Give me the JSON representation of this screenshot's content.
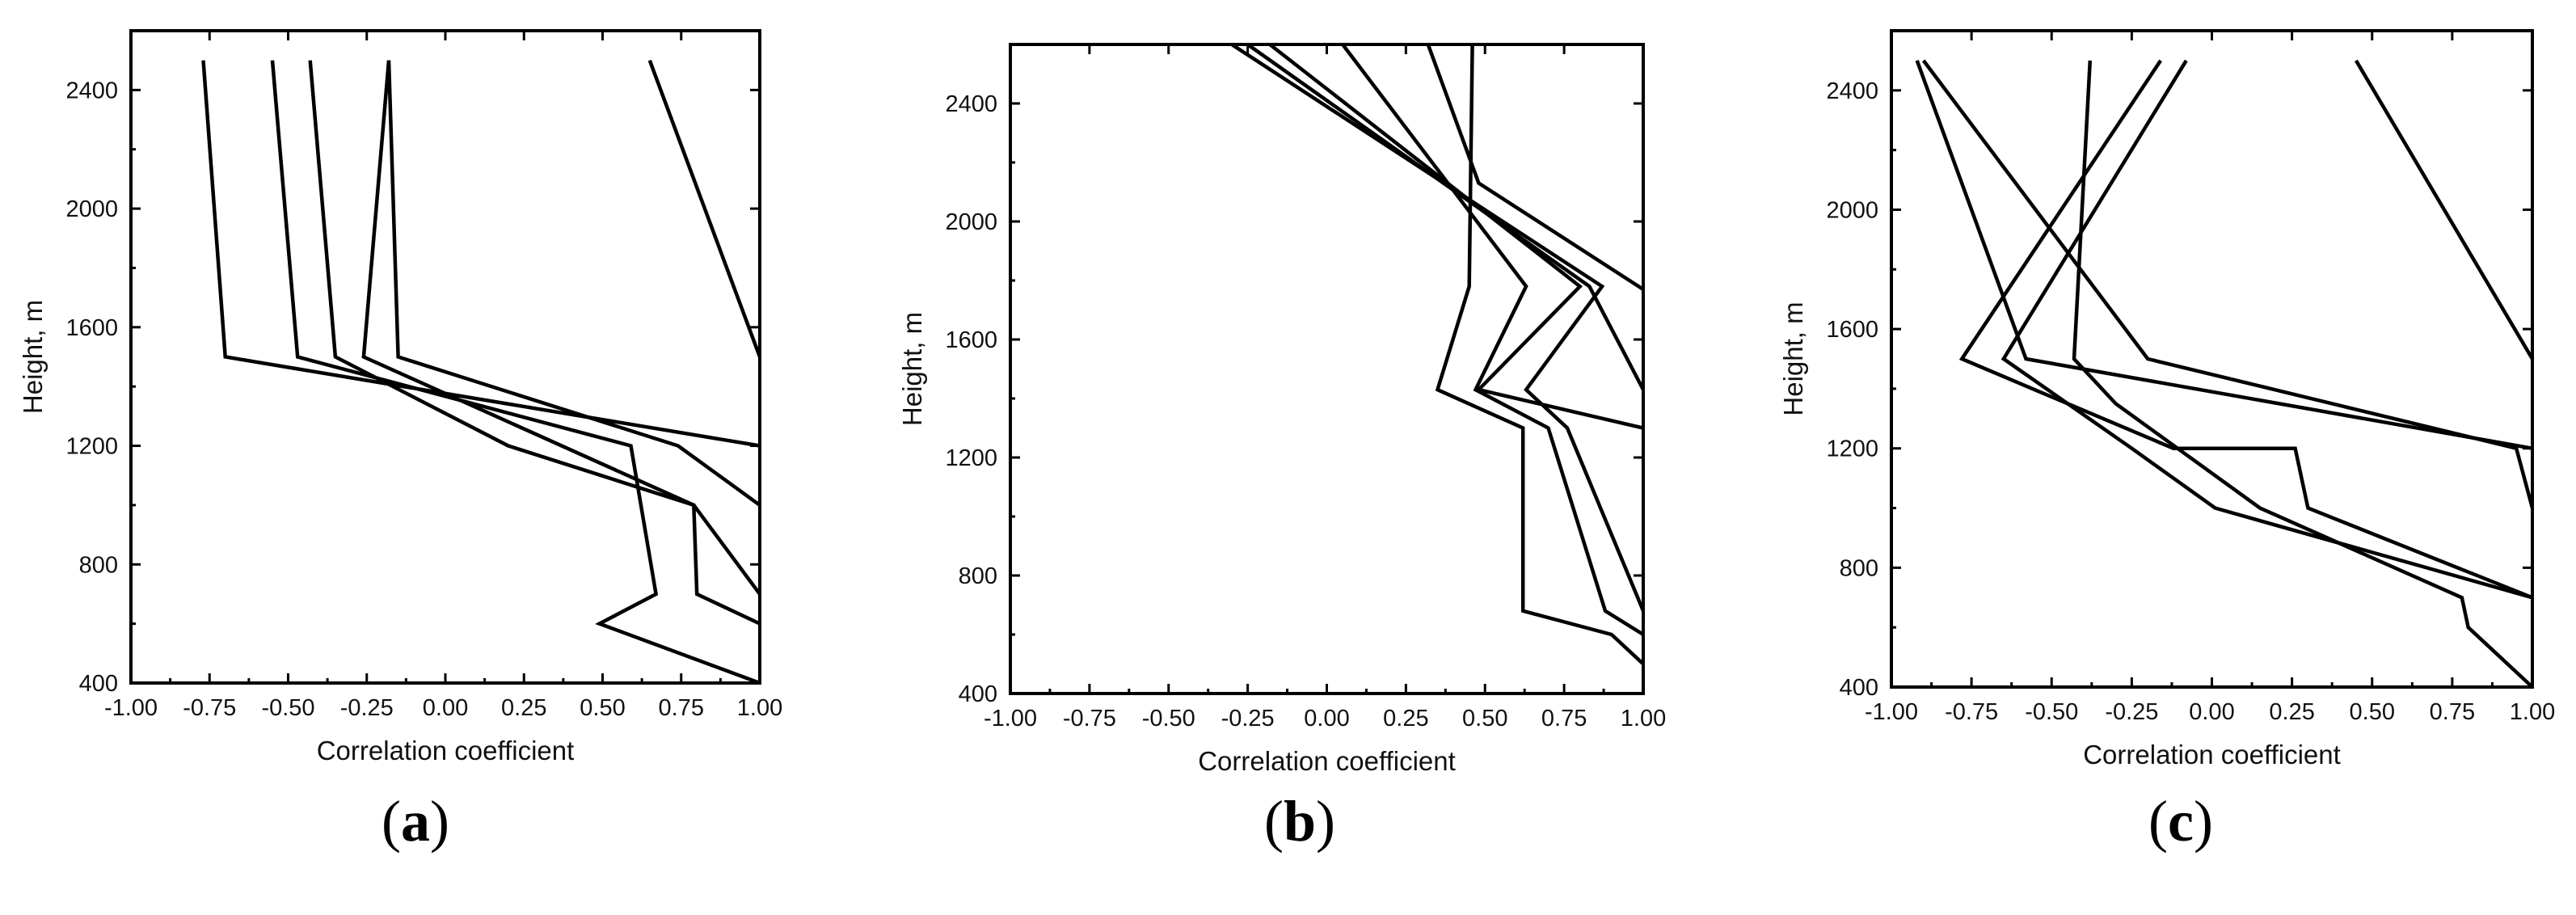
{
  "chart_data": [
    {
      "type": "line",
      "panel_label": "a",
      "xlabel": "Correlation coefficient",
      "ylabel": "Height, m",
      "xlim": [
        -1.0,
        1.0
      ],
      "ylim": [
        400,
        2600
      ],
      "xticks": [
        "-1.00",
        "-0.75",
        "-0.50",
        "-0.25",
        "0.00",
        "0.25",
        "0.50",
        "0.75",
        "1.00"
      ],
      "yticks": [
        "400",
        "800",
        "1200",
        "1600",
        "2000",
        "2400"
      ],
      "series": [
        {
          "points": [
            [
              -0.77,
              2500
            ],
            [
              -0.7,
              1500
            ],
            [
              1.0,
              1200
            ]
          ]
        },
        {
          "points": [
            [
              -0.55,
              2500
            ],
            [
              -0.47,
              1500
            ],
            [
              0.59,
              1200
            ],
            [
              0.67,
              700
            ],
            [
              0.49,
              600
            ],
            [
              1.0,
              400
            ]
          ]
        },
        {
          "points": [
            [
              -0.43,
              2500
            ],
            [
              -0.35,
              1500
            ],
            [
              0.2,
              1200
            ],
            [
              0.79,
              1000
            ],
            [
              1.0,
              700
            ]
          ]
        },
        {
          "points": [
            [
              -0.18,
              2500
            ],
            [
              -0.26,
              1500
            ],
            [
              0.79,
              1000
            ],
            [
              0.8,
              700
            ],
            [
              1.0,
              600
            ]
          ]
        },
        {
          "points": [
            [
              -0.18,
              2500
            ],
            [
              -0.15,
              1500
            ],
            [
              0.74,
              1200
            ],
            [
              1.0,
              1000
            ]
          ]
        },
        {
          "points": [
            [
              0.65,
              2500
            ],
            [
              1.0,
              1500
            ]
          ]
        }
      ]
    },
    {
      "type": "line",
      "panel_label": "b",
      "xlabel": "Correlation coefficient",
      "ylabel": "Height, m",
      "xlim": [
        -1.0,
        1.0
      ],
      "ylim": [
        400,
        2600
      ],
      "xticks": [
        "-1.00",
        "-0.75",
        "-0.50",
        "-0.25",
        "0.00",
        "0.25",
        "0.50",
        "0.75",
        "1.00"
      ],
      "yticks": [
        "400",
        "800",
        "1200",
        "1600",
        "2000",
        "2400"
      ],
      "series": [
        {
          "points": [
            [
              0.46,
              2600
            ],
            [
              0.45,
              1780
            ],
            [
              0.35,
              1430
            ],
            [
              0.62,
              1300
            ],
            [
              0.62,
              680
            ],
            [
              0.9,
              600
            ],
            [
              1.0,
              500
            ]
          ]
        },
        {
          "points": [
            [
              0.05,
              2600
            ],
            [
              0.63,
              1780
            ],
            [
              0.47,
              1430
            ],
            [
              0.7,
              1300
            ],
            [
              0.88,
              680
            ],
            [
              1.0,
              600
            ]
          ]
        },
        {
          "points": [
            [
              -0.18,
              2600
            ],
            [
              0.8,
              1780
            ],
            [
              0.48,
              1430
            ],
            [
              1.0,
              1300
            ]
          ]
        },
        {
          "points": [
            [
              -0.3,
              2600
            ],
            [
              0.87,
              1780
            ],
            [
              0.63,
              1430
            ],
            [
              0.76,
              1300
            ],
            [
              1.0,
              680
            ]
          ]
        },
        {
          "points": [
            [
              -0.25,
              2600
            ],
            [
              0.83,
              1780
            ],
            [
              1.0,
              1430
            ]
          ]
        },
        {
          "points": [
            [
              0.32,
              2600
            ],
            [
              0.48,
              2130
            ],
            [
              1.0,
              1770
            ]
          ]
        }
      ]
    },
    {
      "type": "line",
      "panel_label": "c",
      "xlabel": "Correlation coefficient",
      "ylabel": "Height, m",
      "xlim": [
        -1.0,
        1.0
      ],
      "ylim": [
        400,
        2600
      ],
      "xticks": [
        "-1.00",
        "-0.75",
        "-0.50",
        "-0.25",
        "0.00",
        "0.25",
        "0.50",
        "0.75",
        "1.00"
      ],
      "yticks": [
        "400",
        "800",
        "1200",
        "1600",
        "2000",
        "2400"
      ],
      "series": [
        {
          "points": [
            [
              -0.9,
              2500
            ],
            [
              -0.2,
              1500
            ],
            [
              0.95,
              1200
            ],
            [
              1.0,
              1000
            ]
          ]
        },
        {
          "points": [
            [
              -0.16,
              2500
            ],
            [
              -0.78,
              1500
            ],
            [
              -0.12,
              1200
            ],
            [
              0.26,
              1200
            ],
            [
              0.3,
              1000
            ],
            [
              1.0,
              700
            ]
          ]
        },
        {
          "points": [
            [
              -0.08,
              2500
            ],
            [
              -0.65,
              1500
            ],
            [
              -0.25,
              1200
            ],
            [
              0.01,
              1000
            ],
            [
              1.0,
              700
            ]
          ]
        },
        {
          "points": [
            [
              -0.92,
              2500
            ],
            [
              -0.58,
              1500
            ],
            [
              1.0,
              1200
            ]
          ]
        },
        {
          "points": [
            [
              -0.38,
              2500
            ],
            [
              -0.43,
              1500
            ],
            [
              -0.3,
              1350
            ],
            [
              0.15,
              1000
            ],
            [
              0.78,
              700
            ],
            [
              0.8,
              600
            ],
            [
              1.0,
              400
            ]
          ]
        },
        {
          "points": [
            [
              0.45,
              2500
            ],
            [
              1.0,
              1500
            ]
          ]
        }
      ]
    }
  ]
}
